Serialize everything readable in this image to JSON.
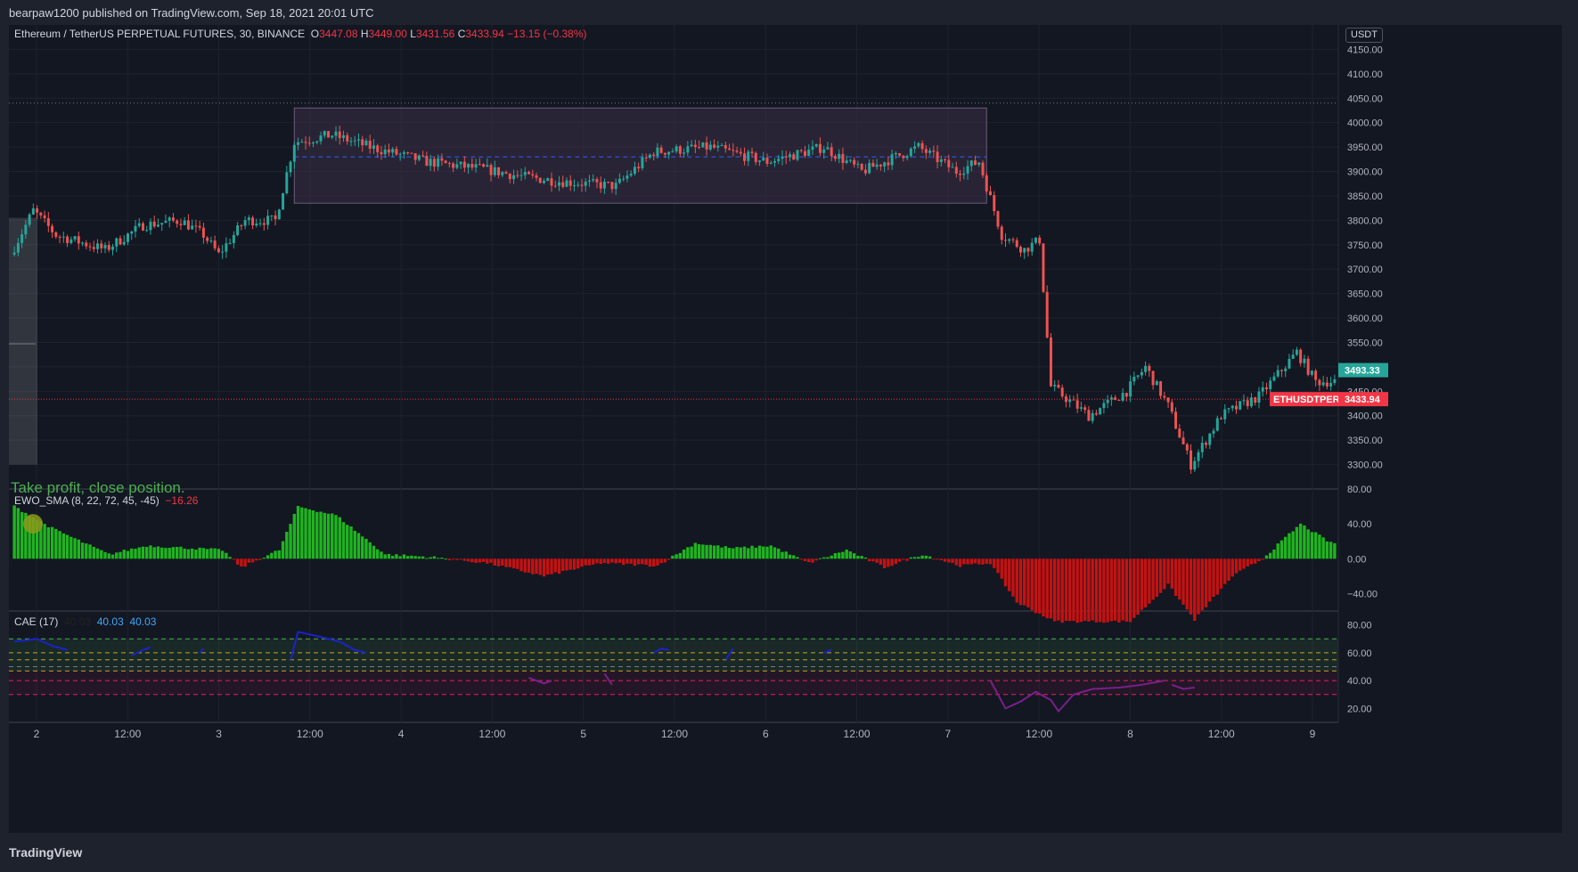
{
  "publisher": "bearpaw1200 published on TradingView.com, Sep 18, 2021 20:01 UTC",
  "footer_brand": "TradingView",
  "symbol_line": {
    "symbol": "Ethereum / TetherUS PERPETUAL FUTURES, 30, BINANCE",
    "o_label": "O",
    "o": "3447.08",
    "h_label": "H",
    "h": "3449.00",
    "l_label": "L",
    "l": "3431.56",
    "c_label": "C",
    "c": "3433.94",
    "change": "−13.15 (−0.38%)"
  },
  "currency_badge": "USDT",
  "annotation_text": "Take profit, close position.",
  "colors": {
    "background": "#131722",
    "up": "#26a69a",
    "down": "#ef5350",
    "ewo_up": "#1fb51f",
    "ewo_down": "#c41212",
    "cae_line": "#1a23c9",
    "cae_low": "#7b1f8c",
    "box_fill": "#3a2f45",
    "price_badge": "#f23645",
    "live_badge": "#26a69a"
  },
  "chart_data": [
    {
      "type": "candlestick",
      "title": "Ethereum / TetherUS PERPETUAL FUTURES, 30, BINANCE",
      "ylim": [
        3250,
        4200
      ],
      "y_ticks": [
        "4150.00",
        "4100.00",
        "4050.00",
        "4000.00",
        "3950.00",
        "3900.00",
        "3850.00",
        "3800.00",
        "3750.00",
        "3700.00",
        "3650.00",
        "3600.00",
        "3550.00",
        "3500.00",
        "3450.00",
        "3400.00",
        "3350.00",
        "3300.00"
      ],
      "x_tick_labels": [
        "2",
        "12:00",
        "3",
        "12:00",
        "4",
        "12:00",
        "5",
        "12:00",
        "6",
        "12:00",
        "7",
        "12:00",
        "8",
        "12:00",
        "9"
      ],
      "price_path_anchors": [
        {
          "bar": 0,
          "price": 3730
        },
        {
          "bar": 6,
          "price": 3820
        },
        {
          "bar": 12,
          "price": 3770
        },
        {
          "bar": 25,
          "price": 3740
        },
        {
          "bar": 35,
          "price": 3790
        },
        {
          "bar": 45,
          "price": 3800
        },
        {
          "bar": 51,
          "price": 3770
        },
        {
          "bar": 55,
          "price": 3730
        },
        {
          "bar": 62,
          "price": 3800
        },
        {
          "bar": 70,
          "price": 3800
        },
        {
          "bar": 75,
          "price": 3960
        },
        {
          "bar": 85,
          "price": 3975
        },
        {
          "bar": 95,
          "price": 3950
        },
        {
          "bar": 110,
          "price": 3920
        },
        {
          "bar": 125,
          "price": 3905
        },
        {
          "bar": 135,
          "price": 3890
        },
        {
          "bar": 145,
          "price": 3880
        },
        {
          "bar": 160,
          "price": 3870
        },
        {
          "bar": 170,
          "price": 3940
        },
        {
          "bar": 185,
          "price": 3950
        },
        {
          "bar": 200,
          "price": 3920
        },
        {
          "bar": 215,
          "price": 3950
        },
        {
          "bar": 225,
          "price": 3900
        },
        {
          "bar": 240,
          "price": 3950
        },
        {
          "bar": 250,
          "price": 3900
        },
        {
          "bar": 256,
          "price": 3920
        },
        {
          "bar": 262,
          "price": 3770
        },
        {
          "bar": 268,
          "price": 3740
        },
        {
          "bar": 272,
          "price": 3760
        },
        {
          "bar": 275,
          "price": 3460
        },
        {
          "bar": 280,
          "price": 3430
        },
        {
          "bar": 285,
          "price": 3400
        },
        {
          "bar": 295,
          "price": 3450
        },
        {
          "bar": 300,
          "price": 3500
        },
        {
          "bar": 306,
          "price": 3420
        },
        {
          "bar": 312,
          "price": 3300
        },
        {
          "bar": 320,
          "price": 3400
        },
        {
          "bar": 330,
          "price": 3440
        },
        {
          "bar": 340,
          "price": 3530
        },
        {
          "bar": 345,
          "price": 3470
        }
      ],
      "last_price": "3433.94",
      "live_price": "3493.33",
      "last_price_label": "ETHUSDTPERP",
      "range_box": {
        "top": 4030,
        "bottom": 3835,
        "mid": 3930
      },
      "dotted_high_level": 4040
    },
    {
      "type": "bar",
      "title": "EWO_SMA (8, 22, 72, 45, -45)",
      "value_label": "−16.26",
      "ylim": [
        -60,
        80
      ],
      "y_ticks": [
        "80.00",
        "40.00",
        "0.00",
        "−40.00"
      ],
      "values_anchors": [
        {
          "bar": 0,
          "v": 60
        },
        {
          "bar": 10,
          "v": 35
        },
        {
          "bar": 25,
          "v": 5
        },
        {
          "bar": 35,
          "v": 15
        },
        {
          "bar": 55,
          "v": 10
        },
        {
          "bar": 60,
          "v": -10
        },
        {
          "bar": 70,
          "v": 10
        },
        {
          "bar": 75,
          "v": 60
        },
        {
          "bar": 85,
          "v": 50
        },
        {
          "bar": 98,
          "v": 5
        },
        {
          "bar": 110,
          "v": 2
        },
        {
          "bar": 125,
          "v": -5
        },
        {
          "bar": 140,
          "v": -20
        },
        {
          "bar": 155,
          "v": -5
        },
        {
          "bar": 170,
          "v": -8
        },
        {
          "bar": 180,
          "v": 18
        },
        {
          "bar": 190,
          "v": 12
        },
        {
          "bar": 200,
          "v": 15
        },
        {
          "bar": 210,
          "v": -5
        },
        {
          "bar": 220,
          "v": 10
        },
        {
          "bar": 230,
          "v": -10
        },
        {
          "bar": 240,
          "v": 5
        },
        {
          "bar": 250,
          "v": -8
        },
        {
          "bar": 258,
          "v": -5
        },
        {
          "bar": 265,
          "v": -50
        },
        {
          "bar": 275,
          "v": -72
        },
        {
          "bar": 295,
          "v": -72
        },
        {
          "bar": 305,
          "v": -30
        },
        {
          "bar": 312,
          "v": -70
        },
        {
          "bar": 322,
          "v": -20
        },
        {
          "bar": 330,
          "v": 0
        },
        {
          "bar": 340,
          "v": 40
        },
        {
          "bar": 348,
          "v": 18
        }
      ]
    },
    {
      "type": "line",
      "title": "CAE (17)",
      "values_labels": [
        "40.03",
        "40.03",
        "40.03"
      ],
      "ylim": [
        10,
        90
      ],
      "y_ticks": [
        "80.00",
        "60.00",
        "40.00",
        "20.00"
      ],
      "bands": [
        70,
        60,
        55,
        50,
        47,
        40,
        30
      ],
      "series": [
        {
          "name": "high",
          "segments": [
            [
              [
                0,
                68
              ],
              [
                6,
                70
              ],
              [
                10,
                65
              ],
              [
                14,
                62
              ]
            ],
            [
              [
                31,
                58
              ],
              [
                34,
                62
              ],
              [
                36,
                64
              ]
            ],
            [
              [
                49,
                60
              ],
              [
                50,
                63
              ]
            ],
            [
              [
                73,
                55
              ],
              [
                75,
                75
              ],
              [
                80,
                72
              ],
              [
                86,
                68
              ],
              [
                90,
                62
              ],
              [
                93,
                60
              ]
            ],
            [
              [
                169,
                60
              ],
              [
                171,
                63
              ],
              [
                173,
                62
              ]
            ],
            [
              [
                188,
                55
              ],
              [
                190,
                63
              ]
            ],
            [
              [
                214,
                60
              ],
              [
                216,
                62
              ]
            ]
          ]
        },
        {
          "name": "low",
          "segments": [
            [
              [
                136,
                42
              ],
              [
                140,
                38
              ],
              [
                142,
                40
              ]
            ],
            [
              [
                156,
                45
              ],
              [
                158,
                37
              ]
            ],
            [
              [
                220,
                40
              ]
            ],
            [
              [
                258,
                40
              ],
              [
                262,
                20
              ],
              [
                266,
                25
              ],
              [
                270,
                32
              ],
              [
                274,
                26
              ],
              [
                276,
                18
              ],
              [
                280,
                30
              ],
              [
                285,
                34
              ],
              [
                292,
                35
              ],
              [
                298,
                37
              ],
              [
                304,
                40
              ]
            ],
            [
              [
                306,
                37
              ],
              [
                309,
                34
              ],
              [
                312,
                35
              ]
            ]
          ]
        }
      ]
    }
  ]
}
